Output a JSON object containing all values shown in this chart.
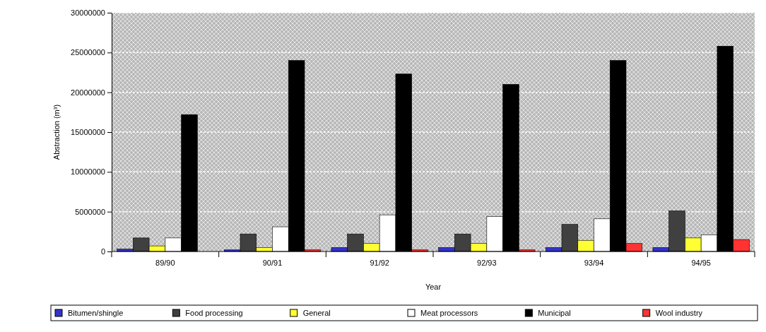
{
  "chart_data": {
    "type": "bar",
    "xlabel": "Year",
    "ylabel": "Abstraction (m³)",
    "categories": [
      "89/90",
      "90/91",
      "91/92",
      "92/93",
      "93/94",
      "94/95"
    ],
    "series": [
      {
        "name": "Bitumen/shingle",
        "color": "#3333cc",
        "values": [
          300000,
          200000,
          500000,
          500000,
          500000,
          500000
        ]
      },
      {
        "name": "Food processing",
        "color": "#404040",
        "values": [
          1700000,
          2200000,
          2200000,
          2200000,
          3400000,
          5100000
        ]
      },
      {
        "name": "General",
        "color": "#ffff33",
        "values": [
          700000,
          500000,
          1000000,
          1000000,
          1400000,
          1700000
        ]
      },
      {
        "name": "Meat processors",
        "color": "#ffffff",
        "values": [
          1700000,
          3100000,
          4600000,
          4400000,
          4100000,
          2100000
        ]
      },
      {
        "name": "Municipal",
        "color": "#000000",
        "values": [
          17200000,
          24000000,
          22300000,
          21000000,
          24000000,
          25800000
        ]
      },
      {
        "name": "Wool industry",
        "color": "#ff3333",
        "values": [
          0,
          200000,
          200000,
          200000,
          1000000,
          1500000
        ]
      }
    ],
    "ylim": [
      0,
      30000000
    ],
    "yticks": [
      0,
      5000000,
      10000000,
      15000000,
      20000000,
      25000000,
      30000000
    ],
    "grid": "y",
    "legend": "bottom"
  }
}
